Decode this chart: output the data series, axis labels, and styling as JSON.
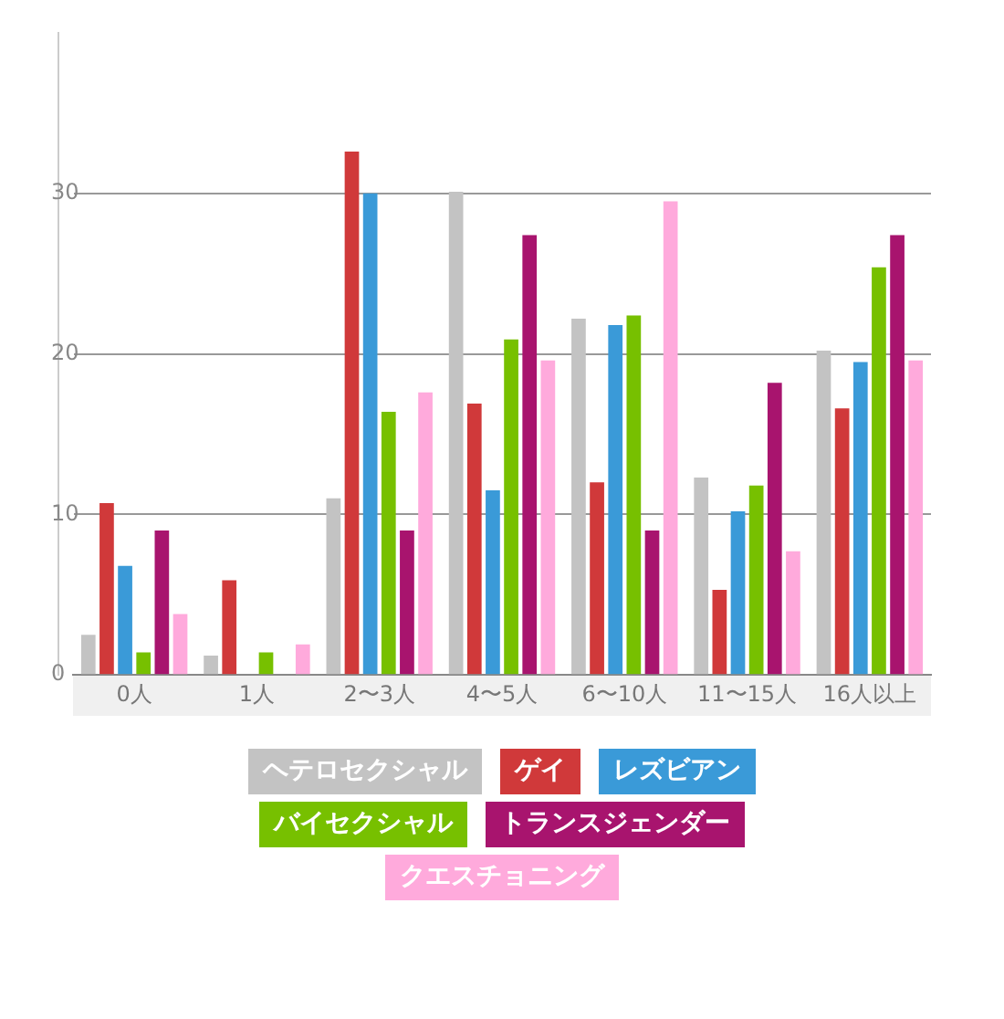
{
  "chart_data": {
    "type": "bar",
    "categories": [
      "0人",
      "1人",
      "2〜3人",
      "4〜5人",
      "6〜10人",
      "11〜15人",
      "16人以上"
    ],
    "series": [
      {
        "name": "ヘテロセクシャル",
        "color": "#c3c3c3",
        "values": [
          2.5,
          1.2,
          11.0,
          30.1,
          22.2,
          12.3,
          20.2
        ]
      },
      {
        "name": "ゲイ",
        "color": "#d0393a",
        "values": [
          10.7,
          5.9,
          32.6,
          16.9,
          12.0,
          5.3,
          16.6
        ]
      },
      {
        "name": "レズビアン",
        "color": "#3a9ad8",
        "values": [
          6.8,
          0,
          30.0,
          11.5,
          21.8,
          10.2,
          19.5
        ]
      },
      {
        "name": "バイセクシャル",
        "color": "#77c000",
        "values": [
          1.4,
          1.4,
          16.4,
          20.9,
          22.4,
          11.8,
          25.4
        ]
      },
      {
        "name": "トランスジェンダー",
        "color": "#a8146e",
        "values": [
          9.0,
          0,
          9.0,
          27.4,
          9.0,
          18.2,
          27.4
        ]
      },
      {
        "name": "クエスチョニング",
        "color": "#ffaadc",
        "values": [
          3.8,
          1.9,
          17.6,
          19.6,
          29.5,
          7.7,
          19.6
        ]
      }
    ],
    "ylim": [
      0,
      40
    ],
    "yticks": [
      0,
      10,
      20,
      30
    ],
    "grid": "y",
    "legend": "bottom"
  }
}
